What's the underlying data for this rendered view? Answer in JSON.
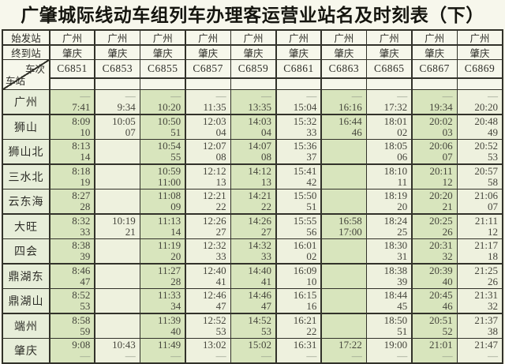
{
  "title": "广肇城际线动车组列车办理客运营业站名及时刻表（下）",
  "colors": {
    "green_column": "#d8e5bd",
    "cream_column": "#eef1de",
    "station_column": "#e7eed9",
    "header_cell": "#f6f7eb",
    "grid_line": "#32322a",
    "dash_text": "#8e9886",
    "time_text": "#45453c"
  },
  "header": {
    "origin_label": "始发站",
    "dest_label": "终到站",
    "train_label": "车次",
    "station_label": "车站",
    "origin": "广州",
    "destination": "肇庆",
    "trains": [
      "C6851",
      "C6853",
      "C6855",
      "C6857",
      "C6859",
      "C6861",
      "C6863",
      "C6865",
      "C6867",
      "C6869"
    ]
  },
  "stations": [
    {
      "name": "广州",
      "cells": [
        [
          "—",
          "7:41"
        ],
        [
          "—",
          "9:34"
        ],
        [
          "—",
          "10:20"
        ],
        [
          "—",
          "11:35"
        ],
        [
          "—",
          "13:35"
        ],
        [
          "—",
          "15:04"
        ],
        [
          "—",
          "16:16"
        ],
        [
          "—",
          "17:32"
        ],
        [
          "—",
          "19:34"
        ],
        [
          "—",
          "20:20"
        ]
      ]
    },
    {
      "name": "狮山",
      "cells": [
        [
          "8:09",
          "10"
        ],
        [
          "10:05",
          "07"
        ],
        [
          "10:50",
          "51"
        ],
        [
          "12:03",
          "04"
        ],
        [
          "14:03",
          "04"
        ],
        [
          "15:32",
          "33"
        ],
        [
          "16:44",
          "46"
        ],
        [
          "18:01",
          "02"
        ],
        [
          "20:02",
          "03"
        ],
        [
          "20:48",
          "49"
        ]
      ]
    },
    {
      "name": "狮山北",
      "cells": [
        [
          "8:13",
          "14"
        ],
        [
          "",
          ""
        ],
        [
          "10:54",
          "55"
        ],
        [
          "12:07",
          "08"
        ],
        [
          "14:07",
          "08"
        ],
        [
          "15:36",
          "37"
        ],
        [
          "",
          ""
        ],
        [
          "18:05",
          "06"
        ],
        [
          "20:06",
          "07"
        ],
        [
          "20:52",
          "53"
        ]
      ]
    },
    {
      "name": "三水北",
      "cells": [
        [
          "8:18",
          "19"
        ],
        [
          "",
          ""
        ],
        [
          "10:59",
          "11:00"
        ],
        [
          "12:12",
          "13"
        ],
        [
          "14:12",
          "13"
        ],
        [
          "15:41",
          "42"
        ],
        [
          "",
          ""
        ],
        [
          "18:10",
          "11"
        ],
        [
          "20:11",
          "12"
        ],
        [
          "20:57",
          "58"
        ]
      ]
    },
    {
      "name": "云东海",
      "cells": [
        [
          "8:27",
          "28"
        ],
        [
          "",
          ""
        ],
        [
          "11:08",
          "09"
        ],
        [
          "12:21",
          "22"
        ],
        [
          "14:21",
          "22"
        ],
        [
          "15:50",
          "51"
        ],
        [
          "",
          ""
        ],
        [
          "18:19",
          "20"
        ],
        [
          "20:20",
          "21"
        ],
        [
          "21:06",
          "07"
        ]
      ]
    },
    {
      "name": "大旺",
      "cells": [
        [
          "8:32",
          "33"
        ],
        [
          "10:19",
          "21"
        ],
        [
          "11:13",
          "14"
        ],
        [
          "12:26",
          "27"
        ],
        [
          "14:26",
          "27"
        ],
        [
          "15:55",
          "56"
        ],
        [
          "16:58",
          "17:00"
        ],
        [
          "18:24",
          "25"
        ],
        [
          "20:25",
          "26"
        ],
        [
          "21:11",
          "12"
        ]
      ]
    },
    {
      "name": "四会",
      "cells": [
        [
          "8:38",
          "39"
        ],
        [
          "",
          ""
        ],
        [
          "11:19",
          "20"
        ],
        [
          "12:32",
          "33"
        ],
        [
          "14:32",
          "33"
        ],
        [
          "16:01",
          "02"
        ],
        [
          "",
          ""
        ],
        [
          "18:30",
          "31"
        ],
        [
          "20:31",
          "32"
        ],
        [
          "21:17",
          "18"
        ]
      ]
    },
    {
      "name": "鼎湖东",
      "cells": [
        [
          "8:46",
          "47"
        ],
        [
          "",
          ""
        ],
        [
          "11:27",
          "28"
        ],
        [
          "12:40",
          "41"
        ],
        [
          "14:40",
          "41"
        ],
        [
          "16:09",
          "10"
        ],
        [
          "",
          ""
        ],
        [
          "18:38",
          "39"
        ],
        [
          "20:39",
          "40"
        ],
        [
          "21:25",
          "26"
        ]
      ]
    },
    {
      "name": "鼎湖山",
      "cells": [
        [
          "8:52",
          "53"
        ],
        [
          "",
          ""
        ],
        [
          "11:33",
          "34"
        ],
        [
          "12:46",
          "47"
        ],
        [
          "14:46",
          "47"
        ],
        [
          "16:15",
          "16"
        ],
        [
          "",
          ""
        ],
        [
          "18:44",
          "45"
        ],
        [
          "20:45",
          "46"
        ],
        [
          "21:31",
          "32"
        ]
      ]
    },
    {
      "name": "端州",
      "cells": [
        [
          "8:58",
          "59"
        ],
        [
          "",
          ""
        ],
        [
          "11:39",
          "40"
        ],
        [
          "12:52",
          "53"
        ],
        [
          "14:52",
          "53"
        ],
        [
          "16:21",
          "22"
        ],
        [
          "",
          ""
        ],
        [
          "18:50",
          "51"
        ],
        [
          "20:51",
          "52"
        ],
        [
          "21:37",
          "38"
        ]
      ]
    },
    {
      "name": "肇庆",
      "cells": [
        [
          "9:08",
          "—"
        ],
        [
          "10:43",
          "—"
        ],
        [
          "11:49",
          "—"
        ],
        [
          "13:02",
          "—"
        ],
        [
          "15:02",
          "—"
        ],
        [
          "16:31",
          "—"
        ],
        [
          "17:22",
          "—"
        ],
        [
          "19:00",
          "—"
        ],
        [
          "21:01",
          "—"
        ],
        [
          "21:47",
          "—"
        ]
      ]
    }
  ]
}
